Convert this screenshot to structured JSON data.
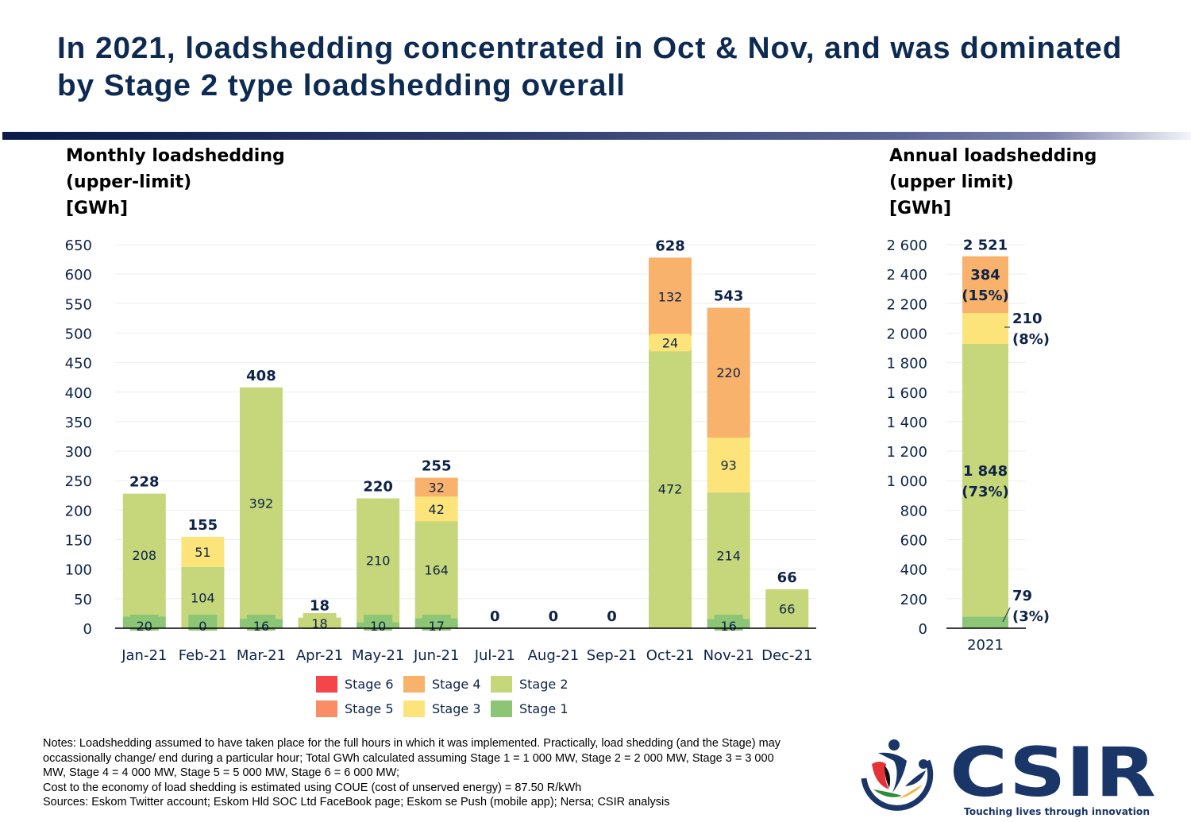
{
  "title": "In 2021, loadshedding concentrated in Oct & Nov, and was dominated by Stage 2 type loadshedding overall",
  "colors": {
    "title": "#0d2a52",
    "text": "#0d2348",
    "stage6": "#f5454a",
    "stage5": "#f98d65",
    "stage4": "#f8b26c",
    "stage3": "#fde47a",
    "stage2": "#c6d67a",
    "stage1": "#8cc576"
  },
  "chart_data": [
    {
      "type": "bar",
      "stacked": true,
      "title": "Monthly loadshedding (upper-limit) [GWh]",
      "title_lines": [
        "Monthly loadshedding",
        "(upper-limit)",
        "[GWh]"
      ],
      "xlabel": "",
      "ylabel": "GWh",
      "ylim": [
        0,
        650
      ],
      "yticks": [
        0,
        50,
        100,
        150,
        200,
        250,
        300,
        350,
        400,
        450,
        500,
        550,
        600,
        650
      ],
      "ytick_labels": [
        "0",
        "50",
        "100",
        "150",
        "200",
        "250",
        "300",
        "350",
        "400",
        "450",
        "500",
        "550",
        "600",
        "650"
      ],
      "grid": true,
      "categories": [
        "Jan-21",
        "Feb-21",
        "Mar-21",
        "Apr-21",
        "May-21",
        "Jun-21",
        "Jul-21",
        "Aug-21",
        "Sep-21",
        "Oct-21",
        "Nov-21",
        "Dec-21"
      ],
      "series": [
        {
          "name": "Stage 1",
          "color_key": "stage1",
          "values": [
            20,
            0,
            16,
            0,
            10,
            17,
            0,
            0,
            0,
            0,
            16,
            0
          ],
          "labels": [
            "20",
            "0",
            "16",
            null,
            "10",
            "17",
            null,
            null,
            null,
            null,
            "16",
            null
          ]
        },
        {
          "name": "Stage 2",
          "color_key": "stage2",
          "values": [
            208,
            104,
            392,
            18,
            210,
            164,
            0,
            0,
            0,
            472,
            214,
            66
          ],
          "labels": [
            "208",
            "104",
            "392",
            "18",
            "210",
            "164",
            null,
            null,
            null,
            "472",
            "214",
            "66"
          ]
        },
        {
          "name": "Stage 3",
          "color_key": "stage3",
          "values": [
            0,
            51,
            0,
            0,
            0,
            42,
            0,
            0,
            0,
            24,
            93,
            0
          ],
          "labels": [
            null,
            "51",
            null,
            null,
            null,
            "42",
            null,
            null,
            null,
            "24",
            "93",
            null
          ]
        },
        {
          "name": "Stage 4",
          "color_key": "stage4",
          "values": [
            0,
            0,
            0,
            0,
            0,
            32,
            0,
            0,
            0,
            132,
            220,
            0
          ],
          "labels": [
            null,
            null,
            null,
            null,
            null,
            "32",
            null,
            null,
            null,
            "132",
            "220",
            null
          ]
        },
        {
          "name": "Stage 5",
          "color_key": "stage5",
          "values": [
            0,
            0,
            0,
            0,
            0,
            0,
            0,
            0,
            0,
            0,
            0,
            0
          ],
          "labels": []
        },
        {
          "name": "Stage 6",
          "color_key": "stage6",
          "values": [
            0,
            0,
            0,
            0,
            0,
            0,
            0,
            0,
            0,
            0,
            0,
            0
          ],
          "labels": []
        }
      ],
      "totals": [
        228,
        155,
        408,
        18,
        220,
        255,
        0,
        0,
        0,
        628,
        543,
        66
      ],
      "total_labels": [
        "228",
        "155",
        "408",
        "18",
        "220",
        "255",
        "0",
        "0",
        "0",
        "628",
        "543",
        "66"
      ]
    },
    {
      "type": "bar",
      "stacked": true,
      "title": "Annual loadshedding (upper limit) [GWh]",
      "title_lines": [
        "Annual loadshedding",
        "(upper limit)",
        "[GWh]"
      ],
      "xlabel": "",
      "ylabel": "GWh",
      "ylim": [
        0,
        2600
      ],
      "yticks": [
        0,
        200,
        400,
        600,
        800,
        1000,
        1200,
        1400,
        1600,
        1800,
        2000,
        2200,
        2400,
        2600
      ],
      "ytick_labels": [
        "0",
        "200",
        "400",
        "600",
        "800",
        "1 000",
        "1 200",
        "1 400",
        "1 600",
        "1 800",
        "2 000",
        "2 200",
        "2 400",
        "2 600"
      ],
      "grid": true,
      "categories": [
        "2021"
      ],
      "series": [
        {
          "name": "Stage 1",
          "color_key": "stage1",
          "values": [
            79
          ],
          "label": "79",
          "pct": "(3%)"
        },
        {
          "name": "Stage 2",
          "color_key": "stage2",
          "values": [
            1848
          ],
          "label": "1 848",
          "pct": "(73%)"
        },
        {
          "name": "Stage 3",
          "color_key": "stage3",
          "values": [
            210
          ],
          "label": "210",
          "pct": "(8%)"
        },
        {
          "name": "Stage 4",
          "color_key": "stage4",
          "values": [
            384
          ],
          "label": "384",
          "pct": "(15%)"
        }
      ],
      "total": 2521,
      "total_label": "2 521"
    }
  ],
  "legend": [
    {
      "label": "Stage 6",
      "color_key": "stage6"
    },
    {
      "label": "Stage 4",
      "color_key": "stage4"
    },
    {
      "label": "Stage 2",
      "color_key": "stage2"
    },
    {
      "label": "Stage 5",
      "color_key": "stage5"
    },
    {
      "label": "Stage 3",
      "color_key": "stage3"
    },
    {
      "label": "Stage 1",
      "color_key": "stage1"
    }
  ],
  "notes": [
    "Notes: Loadshedding assumed to have taken place for the full hours in which it was implemented.  Practically, load shedding (and the Stage) may",
    "occassionally change/ end during a particular hour; Total GWh calculated assuming Stage 1 = 1 000 MW, Stage 2 = 2 000 MW, Stage 3 = 3 000",
    "MW, Stage 4 = 4 000 MW, Stage 5 = 5 000 MW, Stage 6 = 6 000 MW;",
    "Cost to the economy of load shedding is estimated using COUE (cost of unserved energy) = 87.50 R/kWh",
    "Sources: Eskom Twitter account; Eskom Hld SOC Ltd FaceBook page; Eskom se Push (mobile app); Nersa; CSIR analysis"
  ],
  "logo": {
    "name": "CSIR",
    "tagline": "Touching lives through innovation",
    "brand_color": "#1a3668"
  }
}
